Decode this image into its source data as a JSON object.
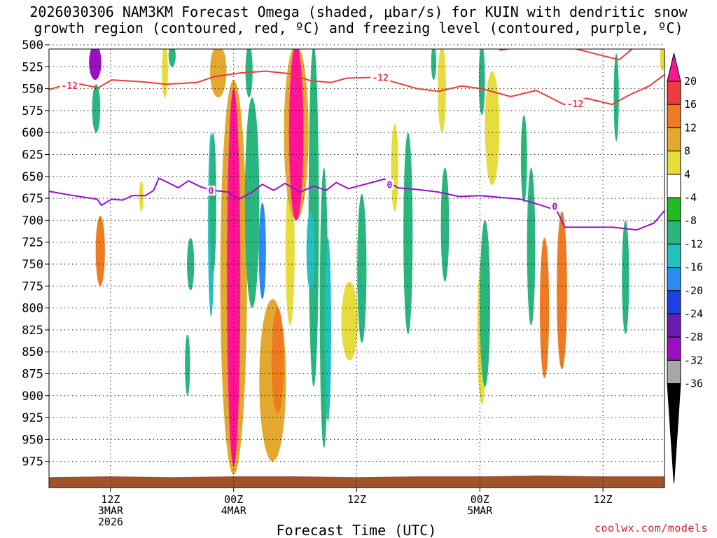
{
  "chart_data": {
    "type": "heatmap",
    "title_line1": "2026030306 NAM3KM Forecast Omega (shaded, μbar/s) for KUIN with dendritic snow",
    "title_line2": "growth region (contoured, red, ºC) and freezing level (contoured, purple, ºC)",
    "xlabel": "Forecast Time (UTC)",
    "watermark": "coolwx.com/models",
    "x_range_hours": [
      0,
      60
    ],
    "x_ticks": [
      {
        "hour": 6,
        "line1": "12Z",
        "line2": "3MAR",
        "line3": "2026"
      },
      {
        "hour": 18,
        "line1": "00Z",
        "line2": "4MAR"
      },
      {
        "hour": 30,
        "line1": "12Z"
      },
      {
        "hour": 42,
        "line1": "00Z",
        "line2": "5MAR"
      },
      {
        "hour": 54,
        "line1": "12Z"
      }
    ],
    "y_range_hpa": [
      500,
      1000
    ],
    "y_ticks": [
      500,
      525,
      550,
      575,
      600,
      625,
      650,
      675,
      700,
      725,
      750,
      775,
      800,
      825,
      850,
      875,
      900,
      925,
      950,
      975
    ],
    "colorbar": {
      "labels": [
        "20",
        "16",
        "12",
        "8",
        "4",
        "-4",
        "-8",
        "-12",
        "-16",
        "-20",
        "-24",
        "-28",
        "-32",
        "-36"
      ],
      "colors": [
        "#ff1493",
        "#ef3b3b",
        "#ee7a22",
        "#e3a82e",
        "#e6dc3c",
        "#ffffff",
        "#22bb22",
        "#2ab57f",
        "#22c0c0",
        "#2a8cf0",
        "#1f3fe0",
        "#6a1bb0",
        "#9b10c0",
        "#a8a8a8",
        "#000000"
      ]
    },
    "shaded_features": [
      {
        "hour": 4.5,
        "p0": 500,
        "p1": 540,
        "w": 1.2,
        "level": -30
      },
      {
        "hour": 4.6,
        "p0": 545,
        "p1": 600,
        "w": 0.8,
        "level": -8
      },
      {
        "hour": 5.0,
        "p0": 695,
        "p1": 775,
        "w": 0.9,
        "level": 12
      },
      {
        "hour": 9.0,
        "p0": 655,
        "p1": 690,
        "w": 0.4,
        "level": 6
      },
      {
        "hour": 11.3,
        "p0": 500,
        "p1": 560,
        "w": 0.6,
        "level": 5
      },
      {
        "hour": 12.0,
        "p0": 500,
        "p1": 525,
        "w": 0.7,
        "level": -8
      },
      {
        "hour": 13.8,
        "p0": 720,
        "p1": 780,
        "w": 0.7,
        "level": -8
      },
      {
        "hour": 13.5,
        "p0": 830,
        "p1": 900,
        "w": 0.5,
        "level": -8
      },
      {
        "hour": 15.8,
        "p0": 600,
        "p1": 810,
        "w": 0.6,
        "level": -12
      },
      {
        "hour": 16.5,
        "p0": 500,
        "p1": 560,
        "w": 1.6,
        "level": 8
      },
      {
        "hour": 18.0,
        "p0": 540,
        "p1": 990,
        "w": 2.6,
        "level": 8
      },
      {
        "hour": 18.0,
        "p0": 550,
        "p1": 980,
        "w": 1.3,
        "level": 20
      },
      {
        "hour": 16.0,
        "p0": 600,
        "p1": 760,
        "w": 0.6,
        "level": -8
      },
      {
        "hour": 19.5,
        "p0": 500,
        "p1": 560,
        "w": 0.7,
        "level": -8
      },
      {
        "hour": 19.8,
        "p0": 560,
        "p1": 800,
        "w": 1.4,
        "level": -8
      },
      {
        "hour": 20.8,
        "p0": 680,
        "p1": 790,
        "w": 0.7,
        "level": -16
      },
      {
        "hour": 21.8,
        "p0": 790,
        "p1": 975,
        "w": 2.6,
        "level": 8
      },
      {
        "hour": 22.3,
        "p0": 800,
        "p1": 920,
        "w": 1.2,
        "level": 12
      },
      {
        "hour": 23.5,
        "p0": 650,
        "p1": 820,
        "w": 0.9,
        "level": 6
      },
      {
        "hour": 24.1,
        "p0": 500,
        "p1": 700,
        "w": 2.4,
        "level": 8
      },
      {
        "hour": 24.1,
        "p0": 500,
        "p1": 700,
        "w": 1.4,
        "level": 20
      },
      {
        "hour": 25.8,
        "p0": 500,
        "p1": 890,
        "w": 1.0,
        "level": -8
      },
      {
        "hour": 26.8,
        "p0": 640,
        "p1": 960,
        "w": 0.8,
        "level": -8
      },
      {
        "hour": 27.2,
        "p0": 720,
        "p1": 930,
        "w": 0.6,
        "level": -12
      },
      {
        "hour": 25.5,
        "p0": 690,
        "p1": 780,
        "w": 0.8,
        "level": -12
      },
      {
        "hour": 29.3,
        "p0": 770,
        "p1": 860,
        "w": 1.6,
        "level": 6
      },
      {
        "hour": 30.5,
        "p0": 670,
        "p1": 840,
        "w": 0.9,
        "level": -8
      },
      {
        "hour": 33.7,
        "p0": 590,
        "p1": 690,
        "w": 0.7,
        "level": 6
      },
      {
        "hour": 35.0,
        "p0": 600,
        "p1": 830,
        "w": 0.9,
        "level": -8
      },
      {
        "hour": 37.5,
        "p0": 500,
        "p1": 540,
        "w": 0.5,
        "level": -8
      },
      {
        "hour": 38.3,
        "p0": 500,
        "p1": 600,
        "w": 0.8,
        "level": 6
      },
      {
        "hour": 38.6,
        "p0": 640,
        "p1": 770,
        "w": 0.8,
        "level": -8
      },
      {
        "hour": 42.2,
        "p0": 740,
        "p1": 910,
        "w": 0.9,
        "level": 6
      },
      {
        "hour": 42.2,
        "p0": 500,
        "p1": 580,
        "w": 0.6,
        "level": -8
      },
      {
        "hour": 43.2,
        "p0": 530,
        "p1": 660,
        "w": 1.4,
        "level": 6
      },
      {
        "hour": 42.5,
        "p0": 700,
        "p1": 890,
        "w": 1.0,
        "level": -8
      },
      {
        "hour": 46.3,
        "p0": 580,
        "p1": 680,
        "w": 0.6,
        "level": -8
      },
      {
        "hour": 47.0,
        "p0": 640,
        "p1": 820,
        "w": 0.8,
        "level": -8
      },
      {
        "hour": 48.3,
        "p0": 720,
        "p1": 880,
        "w": 0.9,
        "level": 12
      },
      {
        "hour": 50.0,
        "p0": 690,
        "p1": 870,
        "w": 1.0,
        "level": 12
      },
      {
        "hour": 55.3,
        "p0": 510,
        "p1": 610,
        "w": 0.5,
        "level": -8
      },
      {
        "hour": 56.2,
        "p0": 700,
        "p1": 830,
        "w": 0.7,
        "level": -8
      },
      {
        "hour": 59.8,
        "p0": 500,
        "p1": 530,
        "w": 0.5,
        "level": 6
      }
    ],
    "terrain_series": [
      {
        "hour": 0,
        "p": 993
      },
      {
        "hour": 6,
        "p": 992
      },
      {
        "hour": 12,
        "p": 993
      },
      {
        "hour": 18,
        "p": 992
      },
      {
        "hour": 24,
        "p": 992
      },
      {
        "hour": 30,
        "p": 993
      },
      {
        "hour": 36,
        "p": 992
      },
      {
        "hour": 42,
        "p": 992
      },
      {
        "hour": 48,
        "p": 991
      },
      {
        "hour": 54,
        "p": 992
      },
      {
        "hour": 60,
        "p": 992
      }
    ],
    "red_contour_label": "-12",
    "red_contour_upper": [
      {
        "hour": 0,
        "p": 502
      },
      {
        "hour": 1.9,
        "p": 497
      },
      {
        "hour": 10.4,
        "p": 499
      },
      {
        "hour": 10.7,
        "p": 504
      },
      {
        "hour": 11.0,
        "p": 497
      },
      {
        "hour": 35.7,
        "p": 497
      },
      {
        "hour": 38.5,
        "p": 502
      },
      {
        "hour": 41.5,
        "p": 500
      },
      {
        "hour": 43.3,
        "p": 497
      },
      {
        "hour": 44.0,
        "p": 506
      },
      {
        "hour": 46.1,
        "p": 502
      },
      {
        "hour": 49.0,
        "p": 497
      },
      {
        "hour": 52.8,
        "p": 509
      },
      {
        "hour": 55.6,
        "p": 517
      },
      {
        "hour": 57.2,
        "p": 501
      },
      {
        "hour": 59.0,
        "p": 490
      }
    ],
    "red_contour_lower": [
      {
        "hour": 0,
        "p": 551
      },
      {
        "hour": 2.3,
        "p": 543
      },
      {
        "hour": 4.8,
        "p": 549
      },
      {
        "hour": 6.1,
        "p": 540
      },
      {
        "hour": 9.0,
        "p": 542
      },
      {
        "hour": 11.4,
        "p": 545
      },
      {
        "hour": 14.4,
        "p": 543
      },
      {
        "hour": 16.2,
        "p": 536
      },
      {
        "hour": 18.7,
        "p": 532
      },
      {
        "hour": 21.1,
        "p": 530
      },
      {
        "hour": 23.5,
        "p": 533
      },
      {
        "hour": 25.5,
        "p": 541
      },
      {
        "hour": 27.5,
        "p": 543
      },
      {
        "hour": 29.0,
        "p": 538
      },
      {
        "hour": 32.0,
        "p": 537
      },
      {
        "hour": 35.9,
        "p": 550
      },
      {
        "hour": 38.0,
        "p": 553
      },
      {
        "hour": 40.2,
        "p": 547
      },
      {
        "hour": 42.2,
        "p": 550
      },
      {
        "hour": 45.0,
        "p": 559
      },
      {
        "hour": 47.5,
        "p": 552
      },
      {
        "hour": 50.2,
        "p": 568
      },
      {
        "hour": 52.4,
        "p": 561
      },
      {
        "hour": 54.9,
        "p": 568
      },
      {
        "hour": 56.6,
        "p": 557
      },
      {
        "hour": 58.5,
        "p": 547
      },
      {
        "hour": 60.0,
        "p": 534
      }
    ],
    "purple_contour_label": "0",
    "purple_contour": [
      {
        "hour": 0,
        "p": 667
      },
      {
        "hour": 2.4,
        "p": 672
      },
      {
        "hour": 4.7,
        "p": 676
      },
      {
        "hour": 5.1,
        "p": 683
      },
      {
        "hour": 6.1,
        "p": 676
      },
      {
        "hour": 7.2,
        "p": 677
      },
      {
        "hour": 8.1,
        "p": 672
      },
      {
        "hour": 9.4,
        "p": 672
      },
      {
        "hour": 10.2,
        "p": 666
      },
      {
        "hour": 10.7,
        "p": 652
      },
      {
        "hour": 11.6,
        "p": 657
      },
      {
        "hour": 12.6,
        "p": 663
      },
      {
        "hour": 13.6,
        "p": 655
      },
      {
        "hour": 14.8,
        "p": 662
      },
      {
        "hour": 16.0,
        "p": 666
      },
      {
        "hour": 17.5,
        "p": 668
      },
      {
        "hour": 18.5,
        "p": 676
      },
      {
        "hour": 19.8,
        "p": 668
      },
      {
        "hour": 20.8,
        "p": 659
      },
      {
        "hour": 21.9,
        "p": 666
      },
      {
        "hour": 23.0,
        "p": 658
      },
      {
        "hour": 24.5,
        "p": 668
      },
      {
        "hour": 25.8,
        "p": 661
      },
      {
        "hour": 27.0,
        "p": 666
      },
      {
        "hour": 28.0,
        "p": 657
      },
      {
        "hour": 29.2,
        "p": 664
      },
      {
        "hour": 30.8,
        "p": 659
      },
      {
        "hour": 32.7,
        "p": 653
      },
      {
        "hour": 34.0,
        "p": 663
      },
      {
        "hour": 36.0,
        "p": 665
      },
      {
        "hour": 38.0,
        "p": 668
      },
      {
        "hour": 40.0,
        "p": 673
      },
      {
        "hour": 42.0,
        "p": 672
      },
      {
        "hour": 44.0,
        "p": 674
      },
      {
        "hour": 46.0,
        "p": 676
      },
      {
        "hour": 48.0,
        "p": 683
      },
      {
        "hour": 49.5,
        "p": 689
      },
      {
        "hour": 50.3,
        "p": 708
      },
      {
        "hour": 52.0,
        "p": 708
      },
      {
        "hour": 55.0,
        "p": 708
      },
      {
        "hour": 57.3,
        "p": 711
      },
      {
        "hour": 59.0,
        "p": 703
      },
      {
        "hour": 60.0,
        "p": 689
      }
    ],
    "contour_labels": [
      {
        "text": "-12",
        "hour": 2.0,
        "p": 547,
        "color": "red"
      },
      {
        "text": "-12",
        "hour": 32.3,
        "p": 538,
        "color": "red"
      },
      {
        "text": "-12",
        "hour": 51.3,
        "p": 568,
        "color": "red"
      },
      {
        "text": "0",
        "hour": 15.8,
        "p": 667,
        "color": "purple"
      },
      {
        "text": "0",
        "hour": 33.2,
        "p": 660,
        "color": "purple"
      },
      {
        "text": "0",
        "hour": 49.3,
        "p": 685,
        "color": "purple"
      }
    ]
  }
}
